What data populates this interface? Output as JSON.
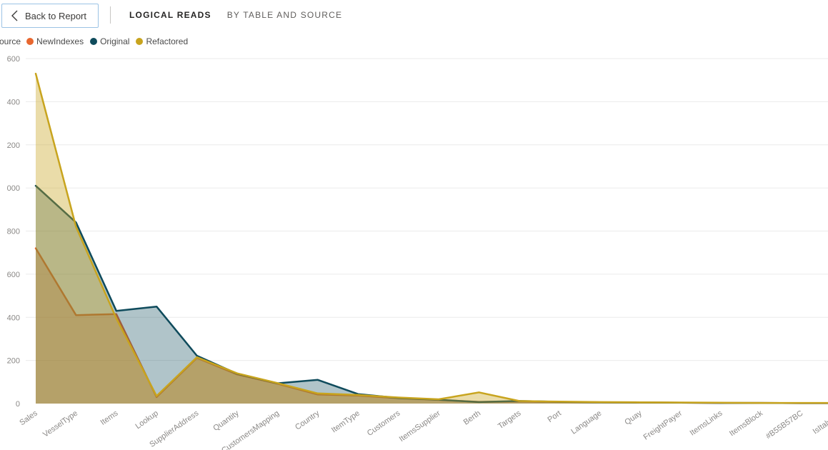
{
  "header": {
    "back_button_label": "Back to Report",
    "title": "LOGICAL READS",
    "subtitle": "BY TABLE AND SOURCE"
  },
  "legend": {
    "title": "Source",
    "items": [
      {
        "label": "NewIndexes",
        "color": "#e8672f"
      },
      {
        "label": "Original",
        "color": "#0f4b5c"
      },
      {
        "label": "Refactored",
        "color": "#c8a41e"
      }
    ]
  },
  "chart_data": {
    "type": "area",
    "title": "LOGICAL READS BY TABLE AND SOURCE",
    "xlabel": "",
    "ylabel": "",
    "grid": true,
    "legend_position": "top-left",
    "categories": [
      "Sales",
      "VesselType",
      "Items",
      "Lookup",
      "SupplierAddress",
      "Quantity",
      "CustomersMapping",
      "Country",
      "ItemType",
      "Customers",
      "ItemsSupplier",
      "Berth",
      "Targets",
      "Port",
      "Language",
      "Quay",
      "FreightPayer",
      "ItemsLinks",
      "ItemsBlock",
      "#B55B57BC",
      "IsItalyCon"
    ],
    "series": [
      {
        "name": "NewIndexes",
        "color": "#e8672f",
        "fill_opacity": 0.35,
        "values": [
          720,
          410,
          415,
          30,
          212,
          135,
          92,
          42,
          37,
          25,
          17,
          8,
          10,
          7,
          6,
          5,
          4,
          3,
          3,
          2,
          2
        ]
      },
      {
        "name": "Original",
        "color": "#0f4b5c",
        "fill_opacity": 0.33,
        "values": [
          1010,
          840,
          430,
          450,
          222,
          138,
          94,
          110,
          44,
          26,
          18,
          7,
          12,
          8,
          6,
          5,
          4,
          3,
          3,
          2,
          2
        ]
      },
      {
        "name": "Refactored",
        "color": "#c8a41e",
        "fill_opacity": 0.38,
        "values": [
          1530,
          820,
          395,
          35,
          215,
          140,
          95,
          47,
          40,
          28,
          20,
          52,
          12,
          9,
          7,
          6,
          5,
          4,
          3,
          3,
          3
        ]
      }
    ],
    "y_axis": {
      "min": 0,
      "max": 1600,
      "tick_interval": 200,
      "tick_labels_visible": [
        "600",
        "400",
        "200",
        "000",
        "800",
        "600",
        "400",
        "200",
        "0"
      ],
      "note": "labels are clipped at left viewport edge (1,600 shows as 600, 1,000 as 000)"
    },
    "x_axis": {
      "label_rotation_deg": -35
    }
  }
}
